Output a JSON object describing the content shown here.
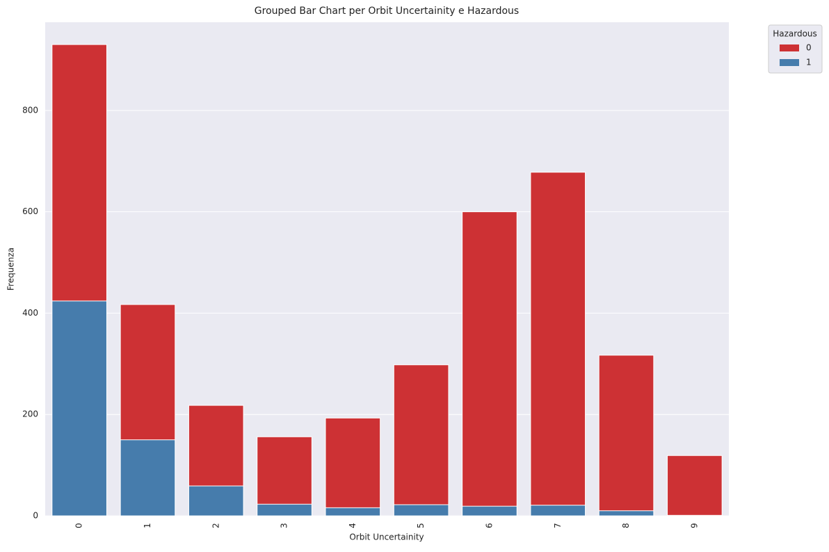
{
  "chart_data": {
    "type": "bar",
    "title": "Grouped Bar Chart per Orbit Uncertainity e Hazardous",
    "x_label": "Orbit Uncertainity",
    "y_label": "Frequenza",
    "categories": [
      "0",
      "1",
      "2",
      "3",
      "4",
      "5",
      "6",
      "7",
      "8",
      "9"
    ],
    "series": [
      {
        "name": "0",
        "color": "#cd3134",
        "values": [
          930,
          417,
          218,
          156,
          193,
          298,
          600,
          678,
          317,
          119
        ]
      },
      {
        "name": "1",
        "color": "#467cac",
        "values": [
          424,
          150,
          59,
          23,
          16,
          22,
          19,
          21,
          10,
          1
        ]
      }
    ],
    "legend_title": "Hazardous",
    "legend_position": "outside-upper-right",
    "ylim": [
      0,
      974
    ],
    "yticks": [
      0,
      200,
      400,
      600,
      800
    ],
    "grid": true
  }
}
